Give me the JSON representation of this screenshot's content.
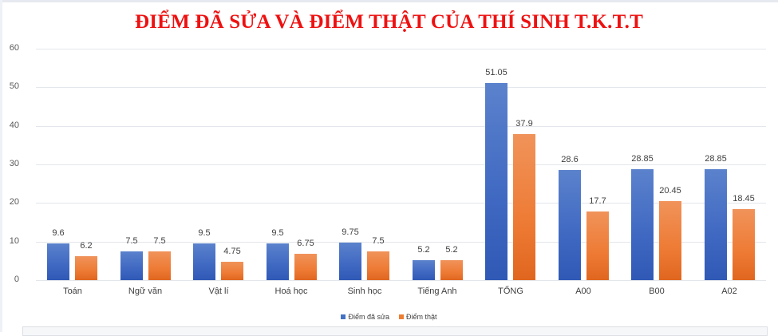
{
  "title": "ĐIỂM ĐÃ SỬA VÀ ĐIỂM THẬT CỦA THÍ SINH T.K.T.T",
  "colors": {
    "title": "#ee1111",
    "series_0": "#4472c4",
    "series_1": "#ed7d31",
    "grid": "#e3e6ea",
    "text": "#404040"
  },
  "legend": {
    "items": [
      {
        "label": "Điểm đã sửa",
        "color": "#4472c4"
      },
      {
        "label": "Điểm thật",
        "color": "#ed7d31"
      }
    ]
  },
  "chart_data": {
    "type": "bar",
    "title": "ĐIỂM ĐÃ SỬA VÀ ĐIỂM THẬT CỦA THÍ SINH T.K.T.T",
    "xlabel": "",
    "ylabel": "",
    "categories": [
      "Toán",
      "Ngữ văn",
      "Vật lí",
      "Hoá học",
      "Sinh học",
      "Tiếng Anh",
      "TỔNG",
      "A00",
      "B00",
      "A02"
    ],
    "series": [
      {
        "name": "Điểm đã sửa",
        "color": "#4472c4",
        "values": [
          9.6,
          7.5,
          9.5,
          9.5,
          9.75,
          5.2,
          51.05,
          28.6,
          28.85,
          28.85
        ]
      },
      {
        "name": "Điểm thật",
        "color": "#ed7d31",
        "values": [
          6.2,
          7.5,
          4.75,
          6.75,
          7.5,
          5.2,
          37.9,
          17.7,
          20.45,
          18.45
        ]
      }
    ],
    "value_labels": [
      [
        "9.6",
        "7.5",
        "9.5",
        "9.5",
        "9.75",
        "5.2",
        "51.05",
        "28.6",
        "28.85",
        "28.85"
      ],
      [
        "6.2",
        "7.5",
        "4.75",
        "6.75",
        "7.5",
        "5.2",
        "37.9",
        "17.7",
        "20.45",
        "18.45"
      ]
    ],
    "ylim": [
      0,
      60
    ],
    "yticks": [
      "0",
      "10",
      "20",
      "30",
      "40",
      "50",
      "60"
    ],
    "grid": true,
    "legend_position": "bottom"
  }
}
